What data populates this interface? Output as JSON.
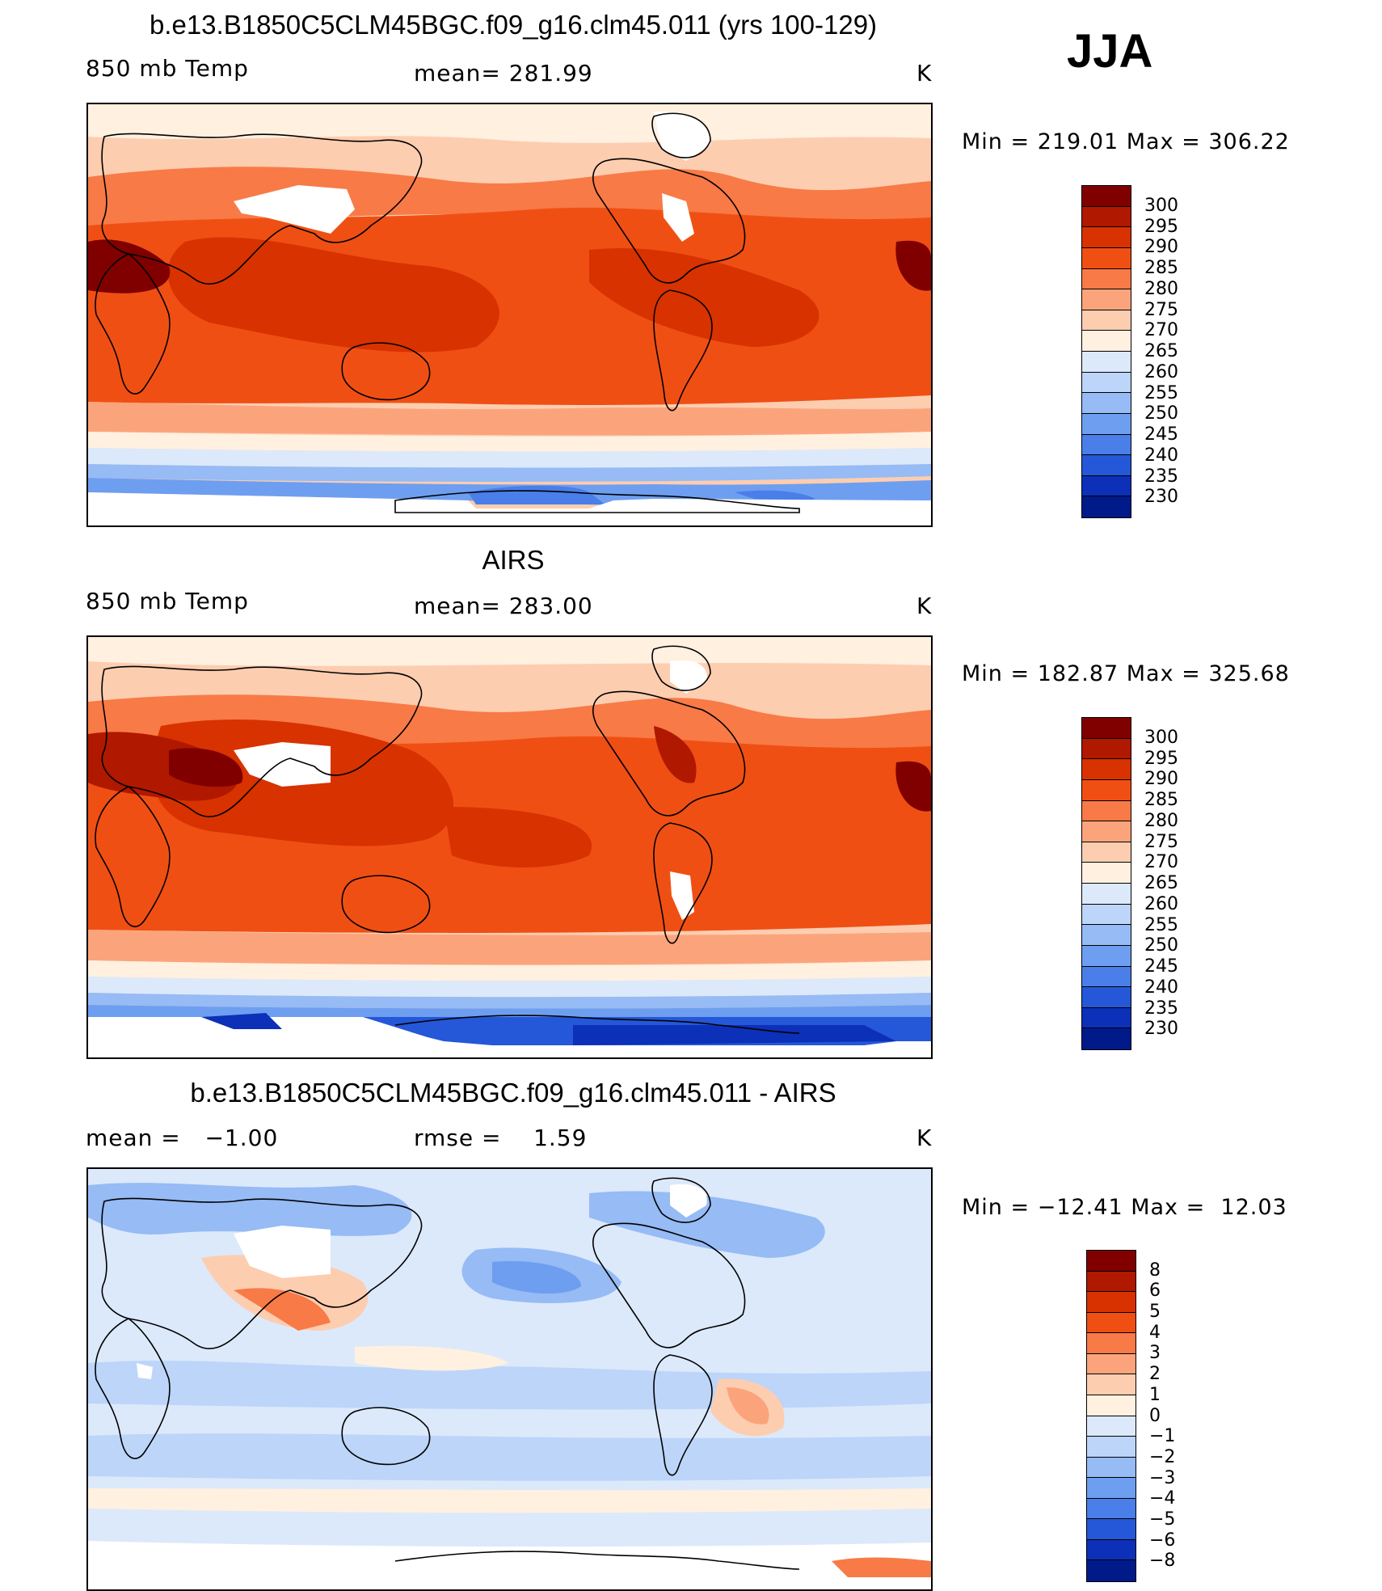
{
  "season": "JJA",
  "panels": [
    {
      "title": "b.e13.B1850C5CLM45BGC.f09_g16.clm45.011 (yrs 100-129)",
      "left_label": "850 mb Temp",
      "center_label": "mean= 281.99",
      "units": "K",
      "minmax": "Min = 219.01 Max = 306.22",
      "colorbar": {
        "labels": [
          "300",
          "295",
          "290",
          "285",
          "280",
          "275",
          "270",
          "265",
          "260",
          "255",
          "250",
          "245",
          "240",
          "235",
          "230"
        ],
        "colors": [
          "#800000",
          "#b01800",
          "#d83200",
          "#f04f14",
          "#f87a46",
          "#fba47c",
          "#fdcdb0",
          "#fff0e0",
          "#dce9fb",
          "#bcd5f9",
          "#96bbf5",
          "#6e9ef0",
          "#4a7ee8",
          "#2458d8",
          "#0c30b8",
          "#001a8a"
        ]
      }
    },
    {
      "title": "AIRS",
      "left_label": "850 mb Temp",
      "center_label": "mean= 283.00",
      "units": "K",
      "minmax": "Min = 182.87 Max = 325.68",
      "colorbar": {
        "labels": [
          "300",
          "295",
          "290",
          "285",
          "280",
          "275",
          "270",
          "265",
          "260",
          "255",
          "250",
          "245",
          "240",
          "235",
          "230"
        ],
        "colors": [
          "#800000",
          "#b01800",
          "#d83200",
          "#f04f14",
          "#f87a46",
          "#fba47c",
          "#fdcdb0",
          "#fff0e0",
          "#dce9fb",
          "#bcd5f9",
          "#96bbf5",
          "#6e9ef0",
          "#4a7ee8",
          "#2458d8",
          "#0c30b8",
          "#001a8a"
        ]
      }
    },
    {
      "title": "b.e13.B1850C5CLM45BGC.f09_g16.clm45.011 - AIRS",
      "left_label": "mean =   −1.00",
      "center_label": "rmse =    1.59",
      "units": "K",
      "minmax": "Min = −12.41 Max =  12.03",
      "colorbar": {
        "labels": [
          "8",
          "6",
          "5",
          "4",
          "3",
          "2",
          "1",
          "0",
          "−1",
          "−2",
          "−3",
          "−4",
          "−5",
          "−6",
          "−8"
        ],
        "colors": [
          "#800000",
          "#b01800",
          "#d83200",
          "#f04f14",
          "#f87a46",
          "#fba47c",
          "#fdcdb0",
          "#fff0e0",
          "#dce9fb",
          "#bcd5f9",
          "#96bbf5",
          "#6e9ef0",
          "#4a7ee8",
          "#2458d8",
          "#0c30b8",
          "#001a8a"
        ]
      }
    }
  ],
  "chart_data": [
    {
      "type": "heatmap",
      "title": "b.e13.B1850C5CLM45BGC.f09_g16.clm45.011 (yrs 100-129)",
      "variable": "850 mb Temp",
      "units": "K",
      "mean": 281.99,
      "min": 219.01,
      "max": 306.22,
      "contour_levels": [
        230,
        235,
        240,
        245,
        250,
        255,
        260,
        265,
        270,
        275,
        280,
        285,
        290,
        295,
        300
      ],
      "projection": "cylindrical equidistant, centered on Pacific"
    },
    {
      "type": "heatmap",
      "title": "AIRS",
      "variable": "850 mb Temp",
      "units": "K",
      "mean": 283.0,
      "min": 182.87,
      "max": 325.68,
      "contour_levels": [
        230,
        235,
        240,
        245,
        250,
        255,
        260,
        265,
        270,
        275,
        280,
        285,
        290,
        295,
        300
      ],
      "projection": "cylindrical equidistant, centered on Pacific"
    },
    {
      "type": "heatmap",
      "title": "b.e13.B1850C5CLM45BGC.f09_g16.clm45.011 - AIRS",
      "units": "K",
      "mean": -1.0,
      "rmse": 1.59,
      "min": -12.41,
      "max": 12.03,
      "contour_levels": [
        -8,
        -6,
        -5,
        -4,
        -3,
        -2,
        -1,
        0,
        1,
        2,
        3,
        4,
        5,
        6,
        8
      ],
      "projection": "cylindrical equidistant, centered on Pacific"
    }
  ]
}
